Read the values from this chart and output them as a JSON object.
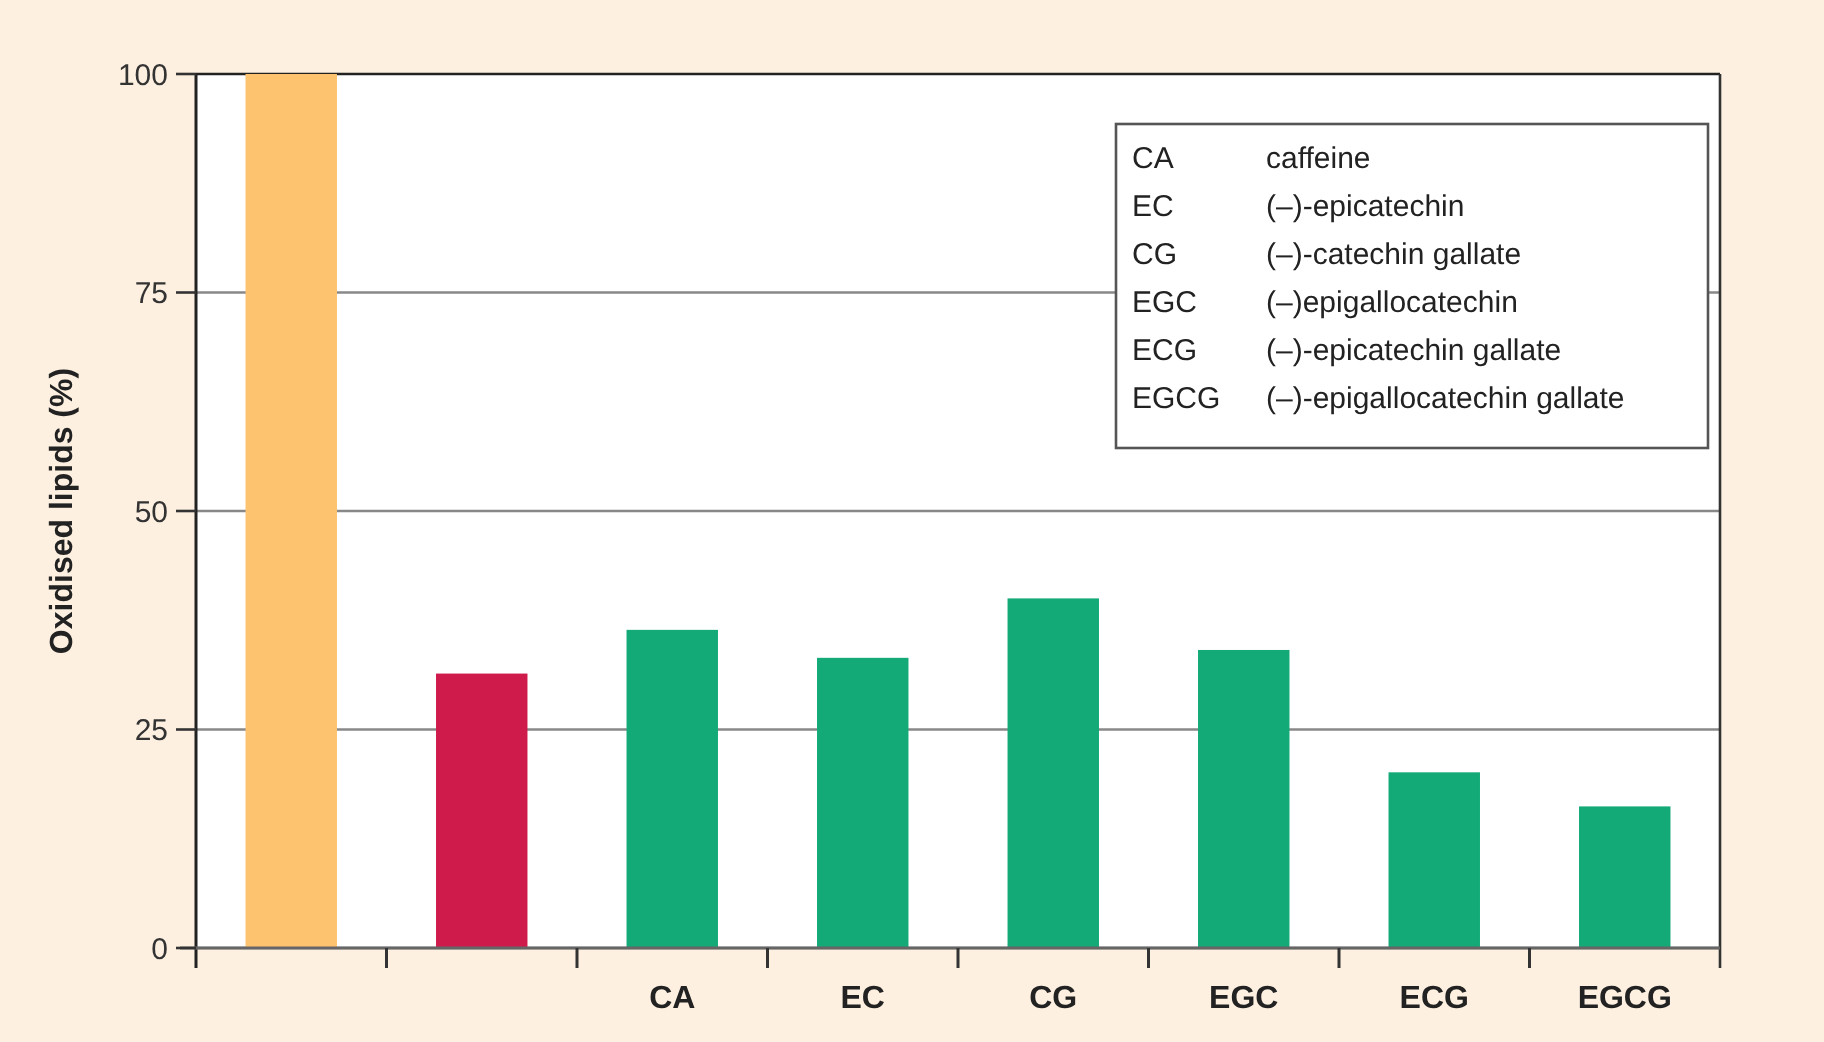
{
  "chart_data": {
    "type": "bar",
    "ylabel": "Oxidised lipids (%)",
    "categories": [
      null,
      null,
      "CA",
      "EC",
      "CG",
      "EGC",
      "ECG",
      "EGCG"
    ],
    "values": [
      100,
      31.4,
      36.4,
      33.2,
      40,
      34.1,
      20.1,
      16.2
    ],
    "colors": [
      "#fdc36e",
      "#cf1a4c",
      "#13aa78",
      "#13aa78",
      "#13aa78",
      "#13aa78",
      "#13aa78",
      "#13aa78"
    ],
    "ylim": [
      0,
      100
    ],
    "yticks": [
      0,
      25,
      50,
      75,
      100
    ],
    "grid": "y",
    "annotations": [
      "CA\tcaffeine",
      "EC\t(–)-epicatechin",
      "CG\t(–)-catechin gallate",
      "EGC\t(–)epigallocatechin",
      "ECG\t(–)-epicatechin gallate",
      "EGCG\t(–)-epigallocatechin gallate"
    ]
  }
}
